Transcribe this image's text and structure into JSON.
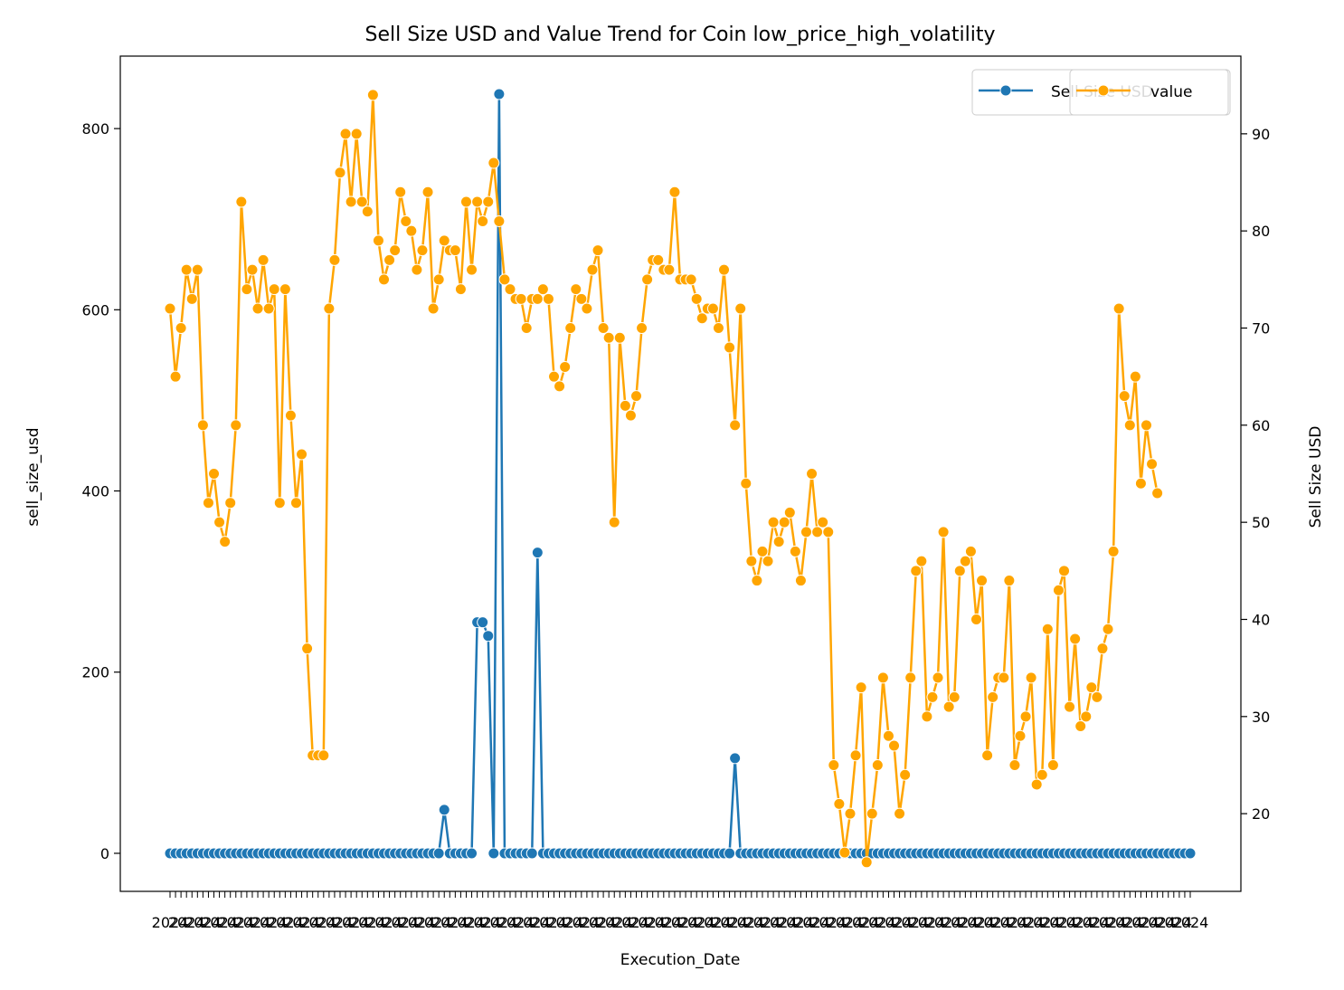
{
  "chart_data": {
    "type": "line",
    "title": "Sell Size USD and Value Trend for Coin low_price_high_volatility",
    "xlabel": "Execution_Date",
    "ylabel_left": "sell_size_usd",
    "ylabel_right": "Sell Size USD",
    "ylim_left": [
      -42,
      880
    ],
    "ylim_right": [
      12,
      98
    ],
    "yticks_left": [
      0,
      200,
      400,
      600,
      800
    ],
    "yticks_right": [
      20,
      30,
      40,
      50,
      60,
      70,
      80,
      90
    ],
    "xtick_label": "2024",
    "grid": false,
    "legend_placement": "top-right",
    "legend": [
      "Sell Size USD",
      "value"
    ],
    "colors": {
      "sell": "#1f77b4",
      "value": "#ffa500",
      "marker_edge": "#ffffff"
    },
    "series": [
      {
        "name": "Sell Size USD",
        "axis": "left",
        "values": [
          0,
          0,
          0,
          0,
          0,
          0,
          0,
          0,
          0,
          0,
          0,
          0,
          0,
          0,
          0,
          0,
          0,
          0,
          0,
          0,
          0,
          0,
          0,
          0,
          0,
          0,
          0,
          0,
          0,
          0,
          0,
          0,
          0,
          0,
          0,
          0,
          0,
          0,
          0,
          0,
          0,
          0,
          0,
          0,
          0,
          0,
          0,
          0,
          0,
          0,
          48,
          0,
          0,
          0,
          0,
          0,
          255,
          255,
          240,
          0,
          838,
          0,
          0,
          0,
          0,
          0,
          0,
          332,
          0,
          0,
          0,
          0,
          0,
          0,
          0,
          0,
          0,
          0,
          0,
          0,
          0,
          0,
          0,
          0,
          0,
          0,
          0,
          0,
          0,
          0,
          0,
          0,
          0,
          0,
          0,
          0,
          0,
          0,
          0,
          0,
          0,
          0,
          0,
          105,
          0,
          0,
          0,
          0,
          0,
          0,
          0,
          0,
          0,
          0,
          0,
          0,
          0,
          0,
          0,
          0,
          0,
          0,
          0,
          0,
          0,
          0,
          0,
          0,
          0,
          0,
          0,
          0,
          0,
          0,
          0,
          0,
          0,
          0,
          0,
          0,
          0,
          0,
          0,
          0,
          0,
          0,
          0,
          0,
          0,
          0,
          0,
          0,
          0,
          0,
          0,
          0,
          0,
          0,
          0,
          0,
          0,
          0,
          0,
          0,
          0,
          0,
          0,
          0,
          0,
          0,
          0,
          0,
          0,
          0,
          0,
          0,
          0,
          0,
          0,
          0,
          0,
          0,
          0,
          0,
          0,
          0,
          0
        ]
      },
      {
        "name": "value",
        "axis": "right",
        "values": [
          72,
          65,
          70,
          76,
          73,
          76,
          60,
          52,
          55,
          50,
          48,
          52,
          60,
          83,
          74,
          76,
          72,
          77,
          72,
          74,
          52,
          74,
          61,
          52,
          57,
          37,
          26,
          26,
          26,
          72,
          77,
          86,
          90,
          83,
          90,
          83,
          82,
          94,
          79,
          75,
          77,
          78,
          84,
          81,
          80,
          76,
          78,
          84,
          72,
          75,
          79,
          78,
          78,
          74,
          83,
          76,
          83,
          81,
          83,
          87,
          81,
          75,
          74,
          73,
          73,
          70,
          73,
          73,
          74,
          73,
          65,
          64,
          66,
          70,
          74,
          73,
          72,
          76,
          78,
          70,
          69,
          50,
          69,
          62,
          61,
          63,
          70,
          75,
          77,
          77,
          76,
          76,
          84,
          75,
          75,
          75,
          73,
          71,
          72,
          72,
          70,
          76,
          68,
          60,
          72,
          54,
          46,
          44,
          47,
          46,
          50,
          48,
          50,
          51,
          47,
          44,
          49,
          55,
          49,
          50,
          49,
          25,
          21,
          16,
          20,
          26,
          33,
          15,
          20,
          25,
          34,
          28,
          27,
          20,
          24,
          34,
          45,
          46,
          30,
          32,
          34,
          49,
          31,
          32,
          45,
          46,
          47,
          40,
          44,
          26,
          32,
          34,
          34,
          44,
          25,
          28,
          30,
          34,
          23,
          24,
          39,
          25,
          43,
          45,
          31,
          38,
          29,
          30,
          33,
          32,
          37,
          39,
          47,
          72,
          63,
          60,
          65,
          54,
          60,
          56,
          53
        ]
      }
    ]
  }
}
